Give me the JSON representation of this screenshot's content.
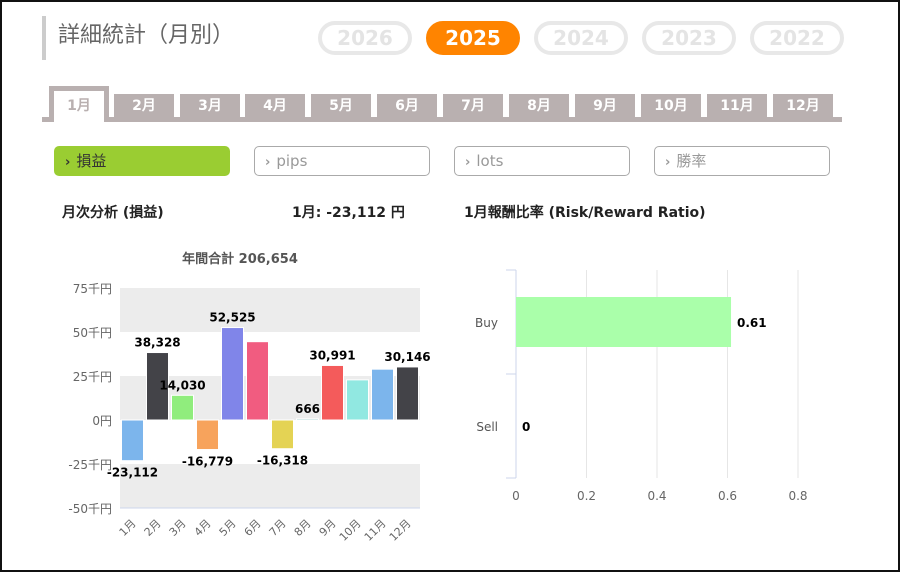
{
  "header": {
    "title": "詳細統計（月別）"
  },
  "years": [
    {
      "label": "2026",
      "active": false
    },
    {
      "label": "2025",
      "active": true
    },
    {
      "label": "2024",
      "active": false
    },
    {
      "label": "2023",
      "active": false
    },
    {
      "label": "2022",
      "active": false
    }
  ],
  "month_tabs": [
    "1月",
    "2月",
    "3月",
    "4月",
    "5月",
    "6月",
    "7月",
    "8月",
    "9月",
    "10月",
    "11月",
    "12月"
  ],
  "active_month_index": 0,
  "metrics": [
    {
      "label": "損益",
      "active": true
    },
    {
      "label": "pips",
      "active": false
    },
    {
      "label": "lots",
      "active": false
    },
    {
      "label": "勝率",
      "active": false
    }
  ],
  "monthly_heading": "月次分析 (損益)",
  "monthly_value": "1月:  -23,112 円",
  "ratio_heading": "1月報酬比率 (Risk/Reward Ratio)",
  "colors": {
    "accent": "#ff8400",
    "metric_active": "#9acd32",
    "tab": "#b9b0b0"
  },
  "chart_data": [
    {
      "type": "bar",
      "title": "年間合計 206,654",
      "categories": [
        "1月",
        "2月",
        "3月",
        "4月",
        "5月",
        "6月",
        "7月",
        "8月",
        "9月",
        "10月",
        "11月",
        "12月"
      ],
      "values": [
        -23112,
        38328,
        14030,
        -16779,
        52525,
        44500,
        -16318,
        666,
        30991,
        22800,
        28877,
        30146
      ],
      "labels": [
        "-23,112",
        "38,328",
        "14,030",
        "-16,779",
        "52,525",
        "",
        "-16,318",
        "666",
        "30,991",
        "",
        "",
        "30,146"
      ],
      "colors": [
        "#7cb5ec",
        "#434348",
        "#90ed7d",
        "#f7a35c",
        "#8085e9",
        "#f15c80",
        "#e4d354",
        "#2b908f",
        "#f45b5b",
        "#91e8e1",
        "#7cb5ec",
        "#434348"
      ],
      "yticks": [
        -50000,
        -25000,
        0,
        25000,
        50000,
        75000
      ],
      "ytick_labels": [
        "-50千円",
        "-25千円",
        "0円",
        "25千円",
        "50千円",
        "75千円"
      ],
      "ylim": [
        -50000,
        75000
      ],
      "xlabel": "",
      "ylabel": ""
    },
    {
      "type": "bar",
      "orientation": "horizontal",
      "title": "1月報酬比率 (Risk/Reward Ratio)",
      "categories": [
        "Buy",
        "Sell"
      ],
      "values": [
        0.61,
        0
      ],
      "labels": [
        "0.61",
        "0"
      ],
      "color": "#aaffaa",
      "xticks": [
        0,
        0.2,
        0.4,
        0.6,
        0.8
      ],
      "xtick_labels": [
        "0",
        "0.2",
        "0.4",
        "0.6",
        "0.8"
      ],
      "xlim": [
        0,
        0.8
      ]
    }
  ]
}
